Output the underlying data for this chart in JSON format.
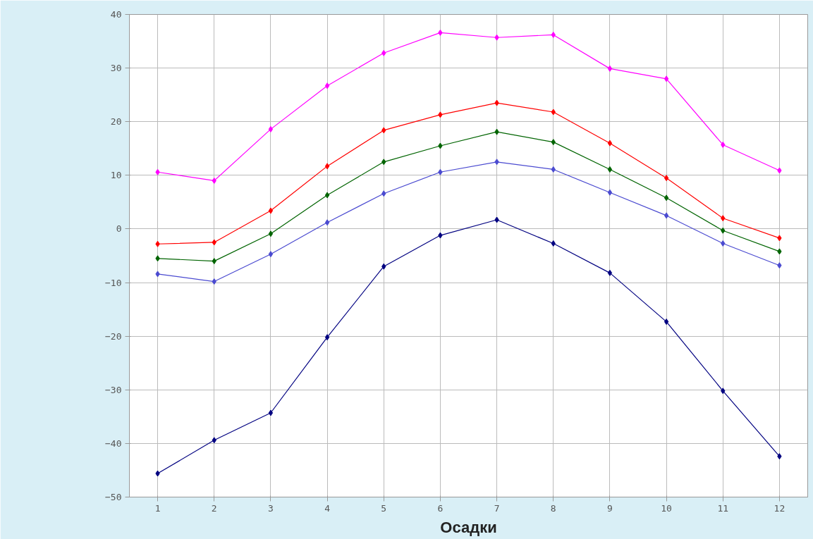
{
  "chart_data": {
    "type": "line",
    "x": [
      1,
      2,
      3,
      4,
      5,
      6,
      7,
      8,
      9,
      10,
      11,
      12
    ],
    "series": [
      {
        "color": "#ff00ff",
        "values": [
          10.6,
          9.0,
          18.6,
          26.7,
          32.8,
          36.6,
          35.7,
          36.2,
          29.9,
          28.0,
          15.7,
          10.9
        ]
      },
      {
        "color": "#ff0000",
        "values": [
          -2.8,
          -2.5,
          3.4,
          11.7,
          18.4,
          21.3,
          23.5,
          21.8,
          16.0,
          9.5,
          2.0,
          -1.7
        ]
      },
      {
        "color": "#006400",
        "values": [
          -5.5,
          -6.0,
          -0.9,
          6.3,
          12.5,
          15.5,
          18.1,
          16.2,
          11.1,
          5.8,
          -0.3,
          -4.2
        ]
      },
      {
        "color": "#4a4ad0",
        "values": [
          -8.4,
          -9.8,
          -4.7,
          1.2,
          6.6,
          10.6,
          12.5,
          11.1,
          6.8,
          2.5,
          -2.7,
          -6.8
        ]
      },
      {
        "color": "#000080",
        "values": [
          -45.6,
          -39.4,
          -34.3,
          -20.2,
          -7.0,
          -1.2,
          1.7,
          -2.7,
          -8.2,
          -17.3,
          -30.2,
          -42.4
        ]
      }
    ],
    "xlim": [
      0.5,
      12.5
    ],
    "xticks": [
      1,
      2,
      3,
      4,
      5,
      6,
      7,
      8,
      9,
      10,
      11,
      12
    ],
    "ylim": [
      -50,
      40
    ],
    "yticks": [
      -50,
      -40,
      -30,
      -20,
      -10,
      0,
      10,
      20,
      30,
      40
    ],
    "grid": true,
    "marker": "diamond",
    "line_style": "solid",
    "annotations": [
      "Осадки"
    ]
  }
}
